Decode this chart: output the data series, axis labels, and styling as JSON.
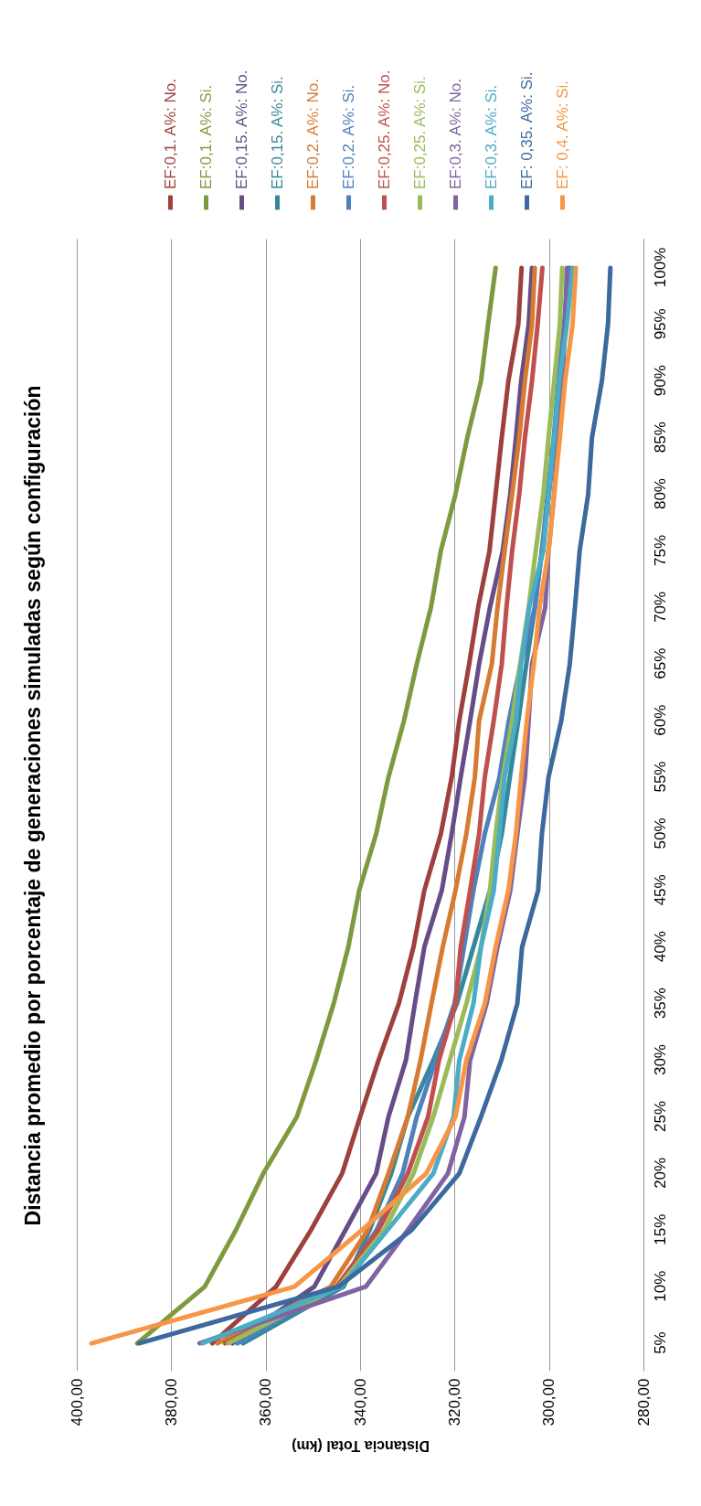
{
  "chart_data": {
    "type": "line",
    "orientation": "horizontal",
    "title": "Distancia promedio por porcentaje de generaciones simuladas según configuración",
    "xlabel": "Distancia Total (km)",
    "categories": [
      "100%",
      "95%",
      "90%",
      "85%",
      "80%",
      "75%",
      "70%",
      "65%",
      "60%",
      "55%",
      "50%",
      "45%",
      "40%",
      "35%",
      "30%",
      "25%",
      "20%",
      "15%",
      "10%",
      "5%"
    ],
    "xlim": [
      400,
      280
    ],
    "xticks": [
      {
        "value": 400,
        "label": "400,00"
      },
      {
        "value": 380,
        "label": "380,00"
      },
      {
        "value": 360,
        "label": "360,00"
      },
      {
        "value": 340,
        "label": "340,00"
      },
      {
        "value": 320,
        "label": "320,00"
      },
      {
        "value": 300,
        "label": "300,00"
      },
      {
        "value": 280,
        "label": "280,00"
      }
    ],
    "grid": "x",
    "legend": "top",
    "series": [
      {
        "name": "EF:0,1.  A%: No.",
        "color": "#9e413e",
        "values": [
          305.8,
          306.5,
          308.6,
          310.0,
          311.3,
          312.6,
          315.0,
          316.9,
          319.0,
          320.6,
          322.9,
          326.4,
          328.7,
          331.8,
          336.1,
          340.0,
          343.8,
          350.4,
          357.8,
          371.3
        ]
      },
      {
        "name": "EF:0,1.  A%: Si.",
        "color": "#7f9a3e",
        "values": [
          311.3,
          312.9,
          314.4,
          317.3,
          319.8,
          322.9,
          325.0,
          328.0,
          330.7,
          334.0,
          336.6,
          340.2,
          342.5,
          345.6,
          349.3,
          353.4,
          360.5,
          366.3,
          372.9,
          387.2
        ]
      },
      {
        "name": "EF:0,15.  A%: No.",
        "color": "#664d88",
        "values": [
          303.6,
          304.3,
          305.9,
          307.0,
          308.2,
          309.8,
          312.5,
          314.8,
          316.7,
          318.7,
          320.6,
          322.7,
          326.4,
          328.4,
          330.3,
          334.0,
          336.6,
          343.1,
          349.7,
          367.0
        ]
      },
      {
        "name": "EF:0,15.  A%: Si.",
        "color": "#35889c",
        "values": [
          295.6,
          296.5,
          297.7,
          298.8,
          300.0,
          301.5,
          303.0,
          304.8,
          306.5,
          308.3,
          310.0,
          312.5,
          316.0,
          319.5,
          324.5,
          329.9,
          333.4,
          338.0,
          343.5,
          364.8
        ]
      },
      {
        "name": "EF:0,2.  A%: No.",
        "color": "#d67b31",
        "values": [
          303.0,
          303.6,
          305.1,
          306.3,
          307.8,
          309.4,
          310.9,
          312.1,
          314.8,
          315.7,
          317.5,
          319.8,
          322.5,
          324.9,
          327.2,
          329.9,
          334.0,
          338.4,
          346.2,
          370.2
        ]
      },
      {
        "name": "EF:0,2.  A%: Si.",
        "color": "#4f81bd",
        "values": [
          295.9,
          296.8,
          298.0,
          299.0,
          300.3,
          301.5,
          303.0,
          306.0,
          308.5,
          310.5,
          313.6,
          316.0,
          318.0,
          320.0,
          324.0,
          328.0,
          331.0,
          336.5,
          344.5,
          366.0
        ]
      },
      {
        "name": "EF:0,25.  A%: No.",
        "color": "#c0504d",
        "values": [
          301.4,
          302.4,
          303.6,
          305.1,
          306.3,
          307.8,
          309.0,
          310.0,
          311.7,
          313.6,
          314.8,
          316.7,
          318.7,
          319.8,
          323.3,
          325.6,
          329.9,
          336.1,
          345.0,
          368.6
        ]
      },
      {
        "name": "EF:0,25.  A%: Si.",
        "color": "#9bbb59",
        "values": [
          297.2,
          297.7,
          298.9,
          300.1,
          301.2,
          302.8,
          304.3,
          306.1,
          307.8,
          309.8,
          311.3,
          312.5,
          314.4,
          317.5,
          321.0,
          324.5,
          328.7,
          334.9,
          344.5,
          367.9
        ]
      },
      {
        "name": "EF:0,3.  A%: No.",
        "color": "#8064a2",
        "values": [
          296.2,
          296.6,
          297.1,
          298.1,
          298.9,
          300.1,
          300.8,
          303.6,
          304.3,
          305.1,
          306.7,
          308.2,
          310.9,
          313.2,
          316.7,
          317.9,
          321.4,
          329.9,
          338.8,
          374.0
        ]
      },
      {
        "name": "EF:0,3.  A%: Si.",
        "color": "#4bacc6",
        "values": [
          295.0,
          296.2,
          297.8,
          298.9,
          300.1,
          301.2,
          304.2,
          305.9,
          307.0,
          309.4,
          310.5,
          311.7,
          314.4,
          316.0,
          319.0,
          320.2,
          324.5,
          334.2,
          344.0,
          373.3
        ]
      },
      {
        "name": "EF: 0,35.  A%: Si.",
        "color": "#3c6a9e",
        "values": [
          287.0,
          287.5,
          288.8,
          290.9,
          291.7,
          293.5,
          294.5,
          295.6,
          297.4,
          300.1,
          301.5,
          302.3,
          305.7,
          306.7,
          310.1,
          314.4,
          319.0,
          329.1,
          344.6,
          386.8
        ]
      },
      {
        "name": "EF: 0,4.  A%: Si.",
        "color": "#f79646",
        "values": [
          294.3,
          295.0,
          296.6,
          297.7,
          298.9,
          300.1,
          302.0,
          303.2,
          304.7,
          305.9,
          307.0,
          308.6,
          311.3,
          313.6,
          317.5,
          319.8,
          326.0,
          339.6,
          353.9,
          396.9
        ]
      }
    ]
  }
}
